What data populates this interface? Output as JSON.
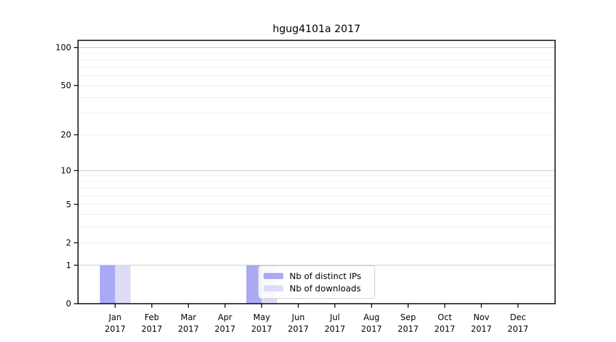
{
  "chart_data": {
    "type": "bar",
    "title": "hgug4101a 2017",
    "categories": [
      "Jan",
      "Feb",
      "Mar",
      "Apr",
      "May",
      "Jun",
      "Jul",
      "Aug",
      "Sep",
      "Oct",
      "Nov",
      "Dec"
    ],
    "category_year": "2017",
    "series": [
      {
        "name": "Nb of distinct IPs",
        "color": "#a9a9f4",
        "values": [
          1,
          0,
          0,
          0,
          1,
          0,
          0,
          0,
          0,
          0,
          0,
          0
        ]
      },
      {
        "name": "Nb of downloads",
        "color": "#dcdcf8",
        "values": [
          1,
          0,
          0,
          0,
          1,
          0,
          0,
          0,
          0,
          0,
          0,
          0
        ]
      }
    ],
    "xlabel": "",
    "ylabel": "",
    "yaxis": {
      "scale": "log1p",
      "ylim": [
        0,
        114
      ],
      "tick_labels": [
        0,
        1,
        2,
        5,
        10,
        20,
        50,
        100
      ],
      "major_gridlines": [
        1,
        10,
        100
      ],
      "minor_gridlines": [
        2,
        3,
        4,
        5,
        6,
        7,
        8,
        9,
        20,
        30,
        40,
        50,
        60,
        70,
        80,
        90,
        110
      ]
    },
    "legend": {
      "position": "lower center",
      "entries": [
        "Nb of distinct IPs",
        "Nb of downloads"
      ]
    },
    "grid": "horizontal"
  },
  "colors": {
    "background": "#ffffff",
    "axis": "#000000",
    "text": "#000000",
    "major_grid": "#c9c9c9",
    "minor_grid": "#ededed",
    "legend_border": "#cccccc",
    "legend_background": "rgba(255,255,255,0.82)"
  }
}
